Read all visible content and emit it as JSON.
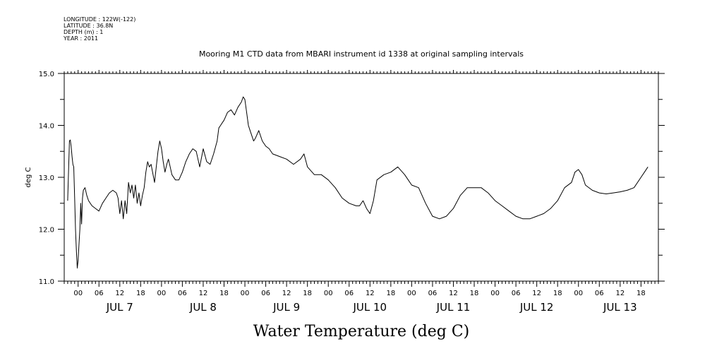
{
  "header": {
    "meta_lines": [
      "LONGITUDE : 122W(-122)",
      "LATITUDE : 36.8N",
      "DEPTH (m) : 1",
      "YEAR : 2011"
    ],
    "title": "Mooring M1 CTD data from MBARI instrument id 1338 at original sampling intervals",
    "bottom_title": "Water Temperature (deg C)"
  },
  "chart_data": {
    "type": "line",
    "title": "Mooring M1 CTD data from MBARI instrument id 1338 at original sampling intervals",
    "xlabel": "",
    "ylabel": "deg C",
    "ylim": [
      11.0,
      15.0
    ],
    "y_ticks": [
      "15.0",
      "14.0",
      "13.0",
      "12.0",
      "11.0"
    ],
    "x_hour_labels": [
      "00",
      "06",
      "12",
      "18"
    ],
    "day_labels": [
      "JUL  7",
      "JUL  8",
      "JUL  9",
      "JUL 10",
      "JUL 11",
      "JUL 12",
      "JUL 13"
    ],
    "xlim": [
      "JUL 6 20:00",
      "JUL 13 23:00"
    ],
    "grid": false,
    "line_color": "#000000",
    "series": [
      {
        "x": [
          "JUL 6 21:00",
          "JUL 6 21:15",
          "JUL 6 21:30",
          "JUL 6 21:45",
          "JUL 6 22:00",
          "JUL 6 22:15",
          "JUL 6 22:30",
          "JUL 6 22:45",
          "JUL 6 23:00",
          "JUL 6 23:15",
          "JUL 6 23:30",
          "JUL 6 23:45",
          "JUL 7 00:00",
          "JUL 7 00:15",
          "JUL 7 00:30",
          "JUL 7 00:45",
          "JUL 7 01:00",
          "JUL 7 01:15",
          "JUL 7 01:30",
          "JUL 7 02:00",
          "JUL 7 02:30",
          "JUL 7 03:00",
          "JUL 7 04:00",
          "JUL 7 05:00",
          "JUL 7 06:00",
          "JUL 7 07:00",
          "JUL 7 08:00",
          "JUL 7 09:00",
          "JUL 7 10:00",
          "JUL 7 11:00",
          "JUL 7 11:30",
          "JUL 7 12:00",
          "JUL 7 12:30",
          "JUL 7 13:00",
          "JUL 7 13:30",
          "JUL 7 14:00",
          "JUL 7 14:30",
          "JUL 7 15:00",
          "JUL 7 15:30",
          "JUL 7 16:00",
          "JUL 7 16:30",
          "JUL 7 17:00",
          "JUL 7 17:30",
          "JUL 7 18:00",
          "JUL 7 18:30",
          "JUL 7 19:00",
          "JUL 7 19:30",
          "JUL 7 20:00",
          "JUL 7 20:30",
          "JUL 7 21:00",
          "JUL 7 22:00",
          "JUL 7 23:00",
          "JUL 7 23:30",
          "JUL 8 00:00",
          "JUL 8 00:30",
          "JUL 8 01:00",
          "JUL 8 01:30",
          "JUL 8 02:00",
          "JUL 8 02:30",
          "JUL 8 03:00",
          "JUL 8 04:00",
          "JUL 8 05:00",
          "JUL 8 06:00",
          "JUL 8 07:00",
          "JUL 8 08:00",
          "JUL 8 09:00",
          "JUL 8 10:00",
          "JUL 8 11:00",
          "JUL 8 12:00",
          "JUL 8 13:00",
          "JUL 8 14:00",
          "JUL 8 15:00",
          "JUL 8 16:00",
          "JUL 8 16:30",
          "JUL 8 17:00",
          "JUL 8 17:30",
          "JUL 8 18:00",
          "JUL 8 19:00",
          "JUL 8 20:00",
          "JUL 8 21:00",
          "JUL 8 22:00",
          "JUL 8 23:00",
          "JUL 8 23:30",
          "JUL 9 00:00",
          "JUL 9 00:30",
          "JUL 9 01:00",
          "JUL 9 01:30",
          "JUL 9 02:00",
          "JUL 9 02:30",
          "JUL 9 03:00",
          "JUL 9 04:00",
          "JUL 9 05:00",
          "JUL 9 06:00",
          "JUL 9 07:00",
          "JUL 9 08:00",
          "JUL 9 10:00",
          "JUL 9 12:00",
          "JUL 9 14:00",
          "JUL 9 16:00",
          "JUL 9 17:00",
          "JUL 9 18:00",
          "JUL 9 20:00",
          "JUL 9 22:00",
          "JUL 10 00:00",
          "JUL 10 02:00",
          "JUL 10 04:00",
          "JUL 10 06:00",
          "JUL 10 08:00",
          "JUL 10 09:00",
          "JUL 10 10:00",
          "JUL 10 11:00",
          "JUL 10 12:00",
          "JUL 10 13:00",
          "JUL 10 14:00",
          "JUL 10 16:00",
          "JUL 10 18:00",
          "JUL 10 20:00",
          "JUL 10 22:00",
          "JUL 10 23:00",
          "JUL 11 00:00",
          "JUL 11 02:00",
          "JUL 11 04:00",
          "JUL 11 06:00",
          "JUL 11 08:00",
          "JUL 11 10:00",
          "JUL 11 12:00",
          "JUL 11 14:00",
          "JUL 11 16:00",
          "JUL 11 18:00",
          "JUL 11 20:00",
          "JUL 11 22:00",
          "JUL 12 00:00",
          "JUL 12 02:00",
          "JUL 12 04:00",
          "JUL 12 06:00",
          "JUL 12 08:00",
          "JUL 12 10:00",
          "JUL 12 12:00",
          "JUL 12 14:00",
          "JUL 12 16:00",
          "JUL 12 18:00",
          "JUL 12 20:00",
          "JUL 12 22:00",
          "JUL 12 23:00",
          "JUL 13 00:00",
          "JUL 13 01:00",
          "JUL 13 02:00",
          "JUL 13 04:00",
          "JUL 13 06:00",
          "JUL 13 08:00",
          "JUL 13 10:00",
          "JUL 13 12:00",
          "JUL 13 14:00",
          "JUL 13 16:00",
          "JUL 13 18:00",
          "JUL 13 19:00",
          "JUL 13 20:00"
        ],
        "y": [
          12.55,
          13.15,
          13.7,
          13.72,
          13.6,
          13.4,
          13.25,
          13.2,
          12.6,
          12.0,
          11.6,
          11.25,
          11.4,
          11.7,
          12.0,
          12.5,
          12.1,
          12.6,
          12.75,
          12.8,
          12.65,
          12.55,
          12.45,
          12.4,
          12.35,
          12.5,
          12.6,
          12.7,
          12.75,
          12.7,
          12.6,
          12.3,
          12.55,
          12.2,
          12.55,
          12.3,
          12.9,
          12.7,
          12.85,
          12.6,
          12.85,
          12.5,
          12.7,
          12.45,
          12.65,
          12.8,
          13.1,
          13.3,
          13.2,
          13.25,
          12.9,
          13.5,
          13.7,
          13.55,
          13.3,
          13.1,
          13.25,
          13.35,
          13.2,
          13.05,
          12.95,
          12.95,
          13.1,
          13.3,
          13.45,
          13.55,
          13.5,
          13.2,
          13.55,
          13.3,
          13.25,
          13.45,
          13.7,
          13.95,
          14.0,
          14.05,
          14.1,
          14.25,
          14.3,
          14.2,
          14.35,
          14.45,
          14.55,
          14.5,
          14.25,
          14.0,
          13.9,
          13.8,
          13.7,
          13.75,
          13.9,
          13.7,
          13.6,
          13.55,
          13.45,
          13.4,
          13.35,
          13.25,
          13.35,
          13.45,
          13.2,
          13.05,
          13.05,
          12.95,
          12.8,
          12.6,
          12.5,
          12.45,
          12.45,
          12.55,
          12.4,
          12.3,
          12.55,
          12.95,
          13.05,
          13.1,
          13.2,
          13.05,
          12.95,
          12.85,
          12.8,
          12.5,
          12.25,
          12.2,
          12.25,
          12.4,
          12.65,
          12.8,
          12.8,
          12.8,
          12.7,
          12.55,
          12.45,
          12.35,
          12.25,
          12.2,
          12.2,
          12.25,
          12.3,
          12.4,
          12.55,
          12.8,
          12.9,
          13.1,
          13.15,
          13.05,
          12.85,
          12.75,
          12.7,
          12.68,
          12.7,
          12.72,
          12.75,
          12.8,
          13.0,
          13.1,
          13.2
        ]
      }
    ]
  }
}
